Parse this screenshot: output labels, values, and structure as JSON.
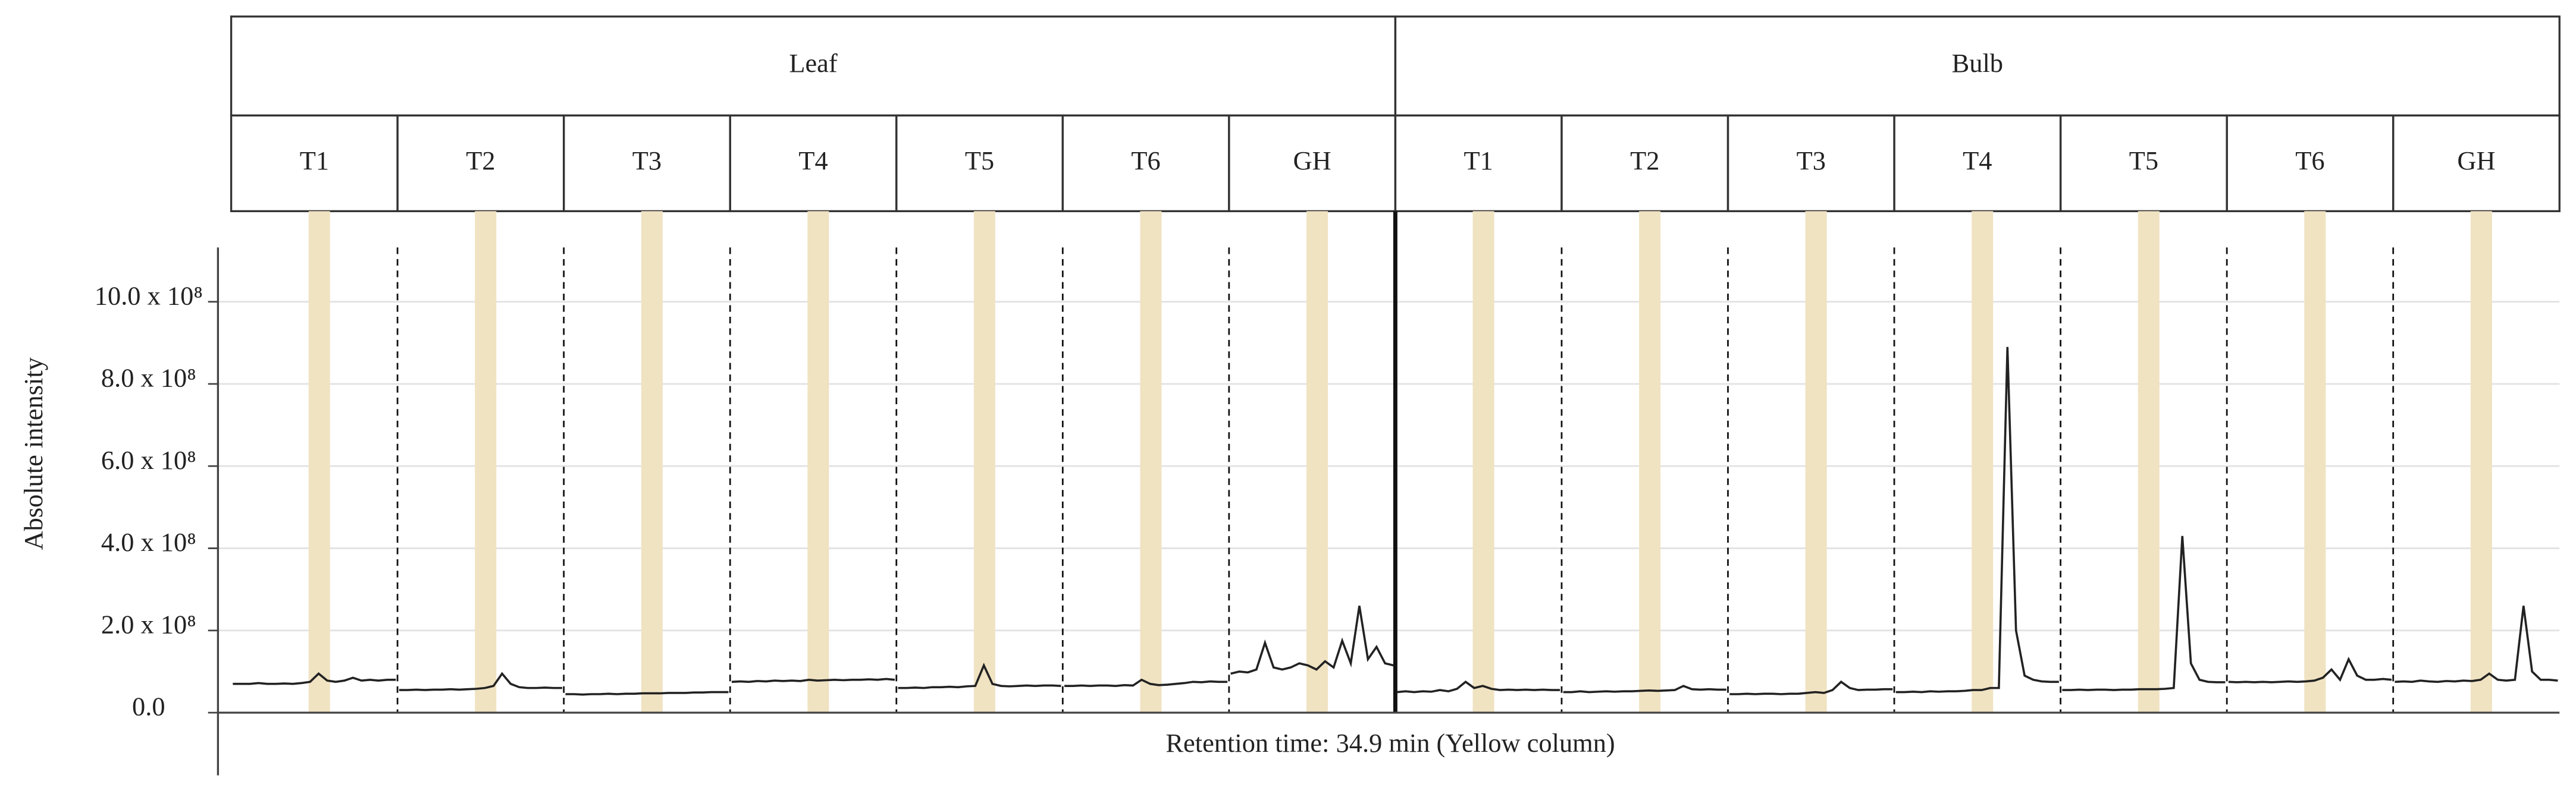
{
  "chart_data": {
    "type": "line",
    "ylabel": "Absolute intensity",
    "xlabel": "Retention time: 34.9 min (Yellow column)",
    "ylim": [
      0,
      1100000000
    ],
    "yticks": [
      {
        "value": 0,
        "label": "0.0"
      },
      {
        "value": 200000000,
        "label": "2.0 x 10⁸"
      },
      {
        "value": 400000000,
        "label": "4.0 x 10⁸"
      },
      {
        "value": 600000000,
        "label": "6.0 x 10⁸"
      },
      {
        "value": 800000000,
        "label": "8.0 x 10⁸"
      },
      {
        "value": 1000000000,
        "label": "10.0 x 10⁸"
      }
    ],
    "grid": true,
    "color": "#222222",
    "highlight_color": "#f0e3c2",
    "groups": [
      {
        "label": "Leaf",
        "panels": [
          {
            "label": "T1",
            "values": [
              70000000.0,
              70000000.0,
              70000000.0,
              72000000.0,
              70000000.0,
              70000000.0,
              71000000.0,
              70000000.0,
              72000000.0,
              75000000.0,
              95000000.0,
              78000000.0,
              75000000.0,
              78000000.0,
              85000000.0,
              78000000.0,
              80000000.0,
              78000000.0,
              80000000.0,
              80000000.0
            ]
          },
          {
            "label": "T2",
            "values": [
              55000000.0,
              55000000.0,
              56000000.0,
              55000000.0,
              56000000.0,
              56000000.0,
              57000000.0,
              56000000.0,
              57000000.0,
              58000000.0,
              60000000.0,
              65000000.0,
              95000000.0,
              70000000.0,
              62000000.0,
              60000000.0,
              60000000.0,
              61000000.0,
              60000000.0,
              60000000.0
            ]
          },
          {
            "label": "T3",
            "values": [
              45000000.0,
              45000000.0,
              44000000.0,
              45000000.0,
              45000000.0,
              46000000.0,
              45000000.0,
              46000000.0,
              46000000.0,
              47000000.0,
              47000000.0,
              47000000.0,
              48000000.0,
              48000000.0,
              48000000.0,
              49000000.0,
              49000000.0,
              50000000.0,
              50000000.0,
              50000000.0
            ]
          },
          {
            "label": "T4",
            "values": [
              75000000.0,
              76000000.0,
              75000000.0,
              77000000.0,
              76000000.0,
              78000000.0,
              77000000.0,
              78000000.0,
              77000000.0,
              80000000.0,
              78000000.0,
              79000000.0,
              80000000.0,
              79000000.0,
              80000000.0,
              80000000.0,
              81000000.0,
              80000000.0,
              82000000.0,
              80000000.0
            ]
          },
          {
            "label": "T5",
            "values": [
              60000000.0,
              60000000.0,
              61000000.0,
              60000000.0,
              62000000.0,
              62000000.0,
              63000000.0,
              62000000.0,
              64000000.0,
              65000000.0,
              115000000.0,
              70000000.0,
              65000000.0,
              64000000.0,
              65000000.0,
              66000000.0,
              65000000.0,
              66000000.0,
              66000000.0,
              65000000.0
            ]
          },
          {
            "label": "T6",
            "values": [
              65000000.0,
              65000000.0,
              66000000.0,
              65000000.0,
              66000000.0,
              66000000.0,
              65000000.0,
              67000000.0,
              66000000.0,
              80000000.0,
              70000000.0,
              67000000.0,
              68000000.0,
              70000000.0,
              72000000.0,
              75000000.0,
              74000000.0,
              76000000.0,
              75000000.0,
              75000000.0
            ]
          },
          {
            "label": "GH",
            "values": [
              95000000.0,
              100000000.0,
              98000000.0,
              105000000.0,
              170000000.0,
              110000000.0,
              105000000.0,
              110000000.0,
              120000000.0,
              115000000.0,
              105000000.0,
              125000000.0,
              110000000.0,
              175000000.0,
              120000000.0,
              260000000.0,
              130000000.0,
              160000000.0,
              120000000.0,
              115000000.0
            ]
          }
        ]
      },
      {
        "label": "Bulb",
        "panels": [
          {
            "label": "T1",
            "values": [
              50000000.0,
              52000000.0,
              50000000.0,
              52000000.0,
              51000000.0,
              55000000.0,
              52000000.0,
              58000000.0,
              75000000.0,
              60000000.0,
              65000000.0,
              58000000.0,
              55000000.0,
              56000000.0,
              55000000.0,
              56000000.0,
              55000000.0,
              56000000.0,
              55000000.0,
              55000000.0
            ]
          },
          {
            "label": "T2",
            "values": [
              50000000.0,
              50000000.0,
              52000000.0,
              50000000.0,
              51000000.0,
              52000000.0,
              51000000.0,
              52000000.0,
              52000000.0,
              53000000.0,
              54000000.0,
              53000000.0,
              54000000.0,
              55000000.0,
              65000000.0,
              57000000.0,
              56000000.0,
              57000000.0,
              56000000.0,
              56000000.0
            ]
          },
          {
            "label": "T3",
            "values": [
              45000000.0,
              45000000.0,
              46000000.0,
              45000000.0,
              46000000.0,
              46000000.0,
              45000000.0,
              46000000.0,
              46000000.0,
              48000000.0,
              50000000.0,
              48000000.0,
              55000000.0,
              75000000.0,
              60000000.0,
              55000000.0,
              56000000.0,
              56000000.0,
              57000000.0,
              57000000.0
            ]
          },
          {
            "label": "T4",
            "values": [
              50000000.0,
              50000000.0,
              51000000.0,
              50000000.0,
              52000000.0,
              51000000.0,
              52000000.0,
              52000000.0,
              53000000.0,
              55000000.0,
              55000000.0,
              60000000.0,
              60000000.0,
              890000000.0,
              200000000.0,
              90000000.0,
              80000000.0,
              76000000.0,
              75000000.0,
              75000000.0
            ]
          },
          {
            "label": "T5",
            "values": [
              55000000.0,
              55000000.0,
              56000000.0,
              55000000.0,
              56000000.0,
              56000000.0,
              55000000.0,
              56000000.0,
              56000000.0,
              57000000.0,
              57000000.0,
              57000000.0,
              58000000.0,
              60000000.0,
              430000000.0,
              120000000.0,
              80000000.0,
              75000000.0,
              74000000.0,
              74000000.0
            ]
          },
          {
            "label": "T6",
            "values": [
              75000000.0,
              74000000.0,
              75000000.0,
              74000000.0,
              75000000.0,
              74000000.0,
              75000000.0,
              76000000.0,
              75000000.0,
              76000000.0,
              78000000.0,
              85000000.0,
              105000000.0,
              80000000.0,
              130000000.0,
              90000000.0,
              80000000.0,
              80000000.0,
              82000000.0,
              80000000.0
            ]
          },
          {
            "label": "GH",
            "values": [
              75000000.0,
              76000000.0,
              75000000.0,
              78000000.0,
              76000000.0,
              75000000.0,
              77000000.0,
              76000000.0,
              78000000.0,
              77000000.0,
              80000000.0,
              95000000.0,
              80000000.0,
              78000000.0,
              80000000.0,
              260000000.0,
              100000000.0,
              80000000.0,
              80000000.0,
              78000000.0
            ]
          }
        ]
      }
    ]
  }
}
